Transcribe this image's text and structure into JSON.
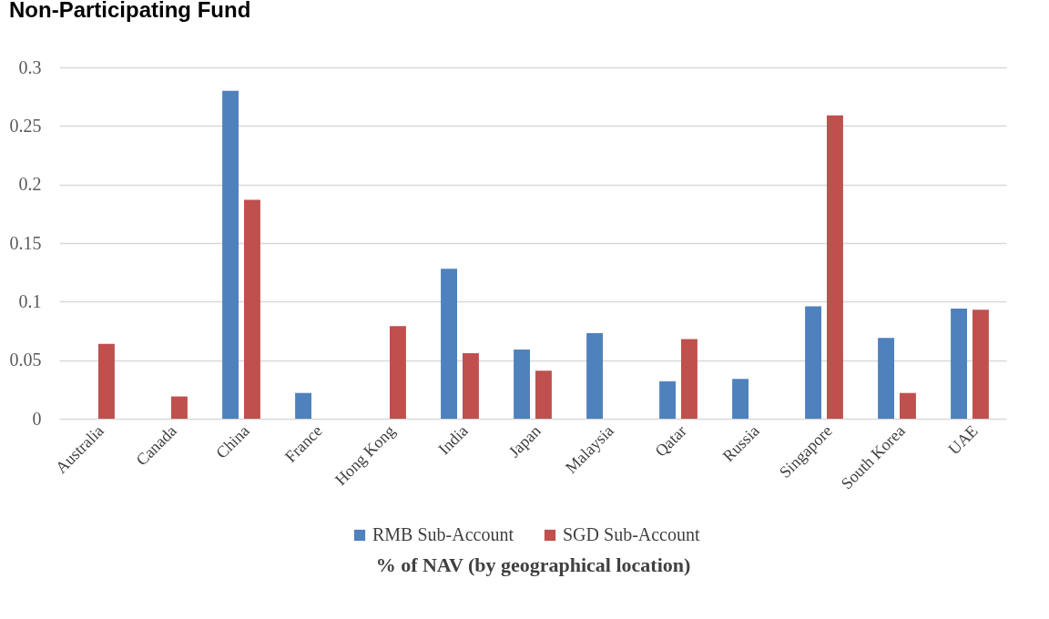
{
  "chart_data": {
    "type": "bar",
    "title": "Non-Participating Fund",
    "xlabel": "% of NAV (by geographical location)",
    "categories": [
      "Australia",
      "Canada",
      "China",
      "France",
      "Hong Kong",
      "India",
      "Japan",
      "Malaysia",
      "Qatar",
      "Russia",
      "Singapore",
      "South Korea",
      "UAE"
    ],
    "series": [
      {
        "name": "RMB Sub-Account",
        "color": "#4f81bd",
        "values": [
          null,
          null,
          0.28,
          0.022,
          null,
          0.128,
          0.059,
          0.073,
          0.032,
          0.034,
          0.096,
          0.069,
          0.094
        ]
      },
      {
        "name": "SGD Sub-Account",
        "color": "#c0504d",
        "values": [
          0.064,
          0.019,
          0.187,
          null,
          0.079,
          0.056,
          0.041,
          null,
          0.068,
          null,
          0.259,
          0.022,
          0.093
        ]
      }
    ],
    "ylim": [
      0,
      0.3
    ],
    "yticks": [
      0,
      0.05,
      0.1,
      0.15,
      0.2,
      0.25,
      0.3
    ],
    "grid": "y",
    "legend": "bottom"
  }
}
